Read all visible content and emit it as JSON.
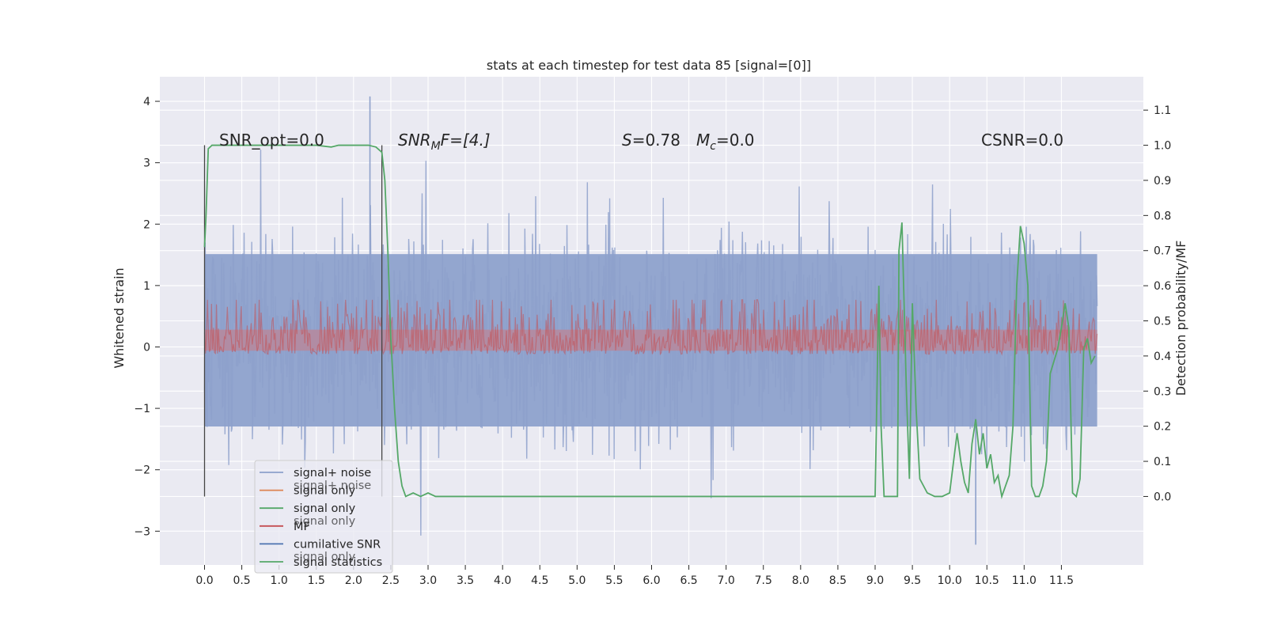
{
  "chart_data": {
    "type": "line",
    "title": "stats at each timestep for test data 85 [signal=[0]]",
    "ylabel": "Whitened strain",
    "ylabel_right": "Detection probability/MF",
    "xlim": [
      -0.6,
      12.6
    ],
    "ylim": [
      -3.55,
      4.4
    ],
    "ylim_right": [
      -0.195,
      1.195
    ],
    "x_ticks": [
      "0.0",
      "0.5",
      "1.0",
      "1.5",
      "2.0",
      "2.5",
      "3.0",
      "3.5",
      "4.0",
      "4.5",
      "5.0",
      "5.5",
      "6.0",
      "6.5",
      "7.0",
      "7.5",
      "8.0",
      "8.5",
      "9.0",
      "9.5",
      "10.0",
      "10.5",
      "11.0",
      "11.5"
    ],
    "y_ticks": [
      "−3",
      "−2",
      "−1",
      "0",
      "1",
      "2",
      "3",
      "4"
    ],
    "y_ticks_right": [
      "0.0",
      "0.1",
      "0.2",
      "0.3",
      "0.4",
      "0.5",
      "0.6",
      "0.7",
      "0.8",
      "0.9",
      "1.0",
      "1.1"
    ],
    "grid": true,
    "legend_position": "lower-left",
    "annotations": {
      "snr_opt": "SNR_opt=0.0",
      "snr_mf_pre": "SNR",
      "snr_mf_sub": "M",
      "snr_mf_post": "F=[4.]",
      "s_name": "S",
      "s_val": "=0.78",
      "mc_name": "M",
      "mc_sub": "c",
      "mc_val": "=0.0",
      "csnr": "CSNR=0.0"
    },
    "legend": [
      {
        "label": "signal+ noise",
        "color": "#8da0cb"
      },
      {
        "label": "signal only",
        "color": "#dd8452"
      },
      {
        "label": "signal only",
        "color": "#55a868"
      },
      {
        "label": "MF",
        "color": "#c44e52"
      },
      {
        "label": "cumilative SNR",
        "color": "#4c72b0"
      },
      {
        "label": "signal statistics",
        "color": "#55a868"
      }
    ],
    "legend_ghost": [
      "signal+ noise",
      "signal only",
      "signal only"
    ],
    "noise_band": {
      "x_range": [
        0.0,
        11.98
      ],
      "typical_range": [
        -1.8,
        2.1
      ],
      "peak_max": 4.08,
      "peak_min": -3.22
    },
    "mf_band": {
      "x_range": [
        0.0,
        11.98
      ],
      "range_right_axis": [
        0.405,
        0.56
      ]
    },
    "markers_x": [
      0.0,
      2.38
    ],
    "series": [
      {
        "name": "signal statistics",
        "axis": "right",
        "color": "#55a868",
        "x": [
          0.0,
          0.02,
          0.05,
          0.1,
          0.2,
          0.5,
          1.0,
          1.5,
          1.7,
          1.8,
          2.0,
          2.2,
          2.3,
          2.38,
          2.42,
          2.46,
          2.5,
          2.55,
          2.6,
          2.65,
          2.7,
          2.8,
          2.9,
          3.0,
          3.1,
          4.0,
          5.0,
          6.0,
          7.0,
          8.0,
          9.0,
          9.05,
          9.08,
          9.12,
          9.3,
          9.32,
          9.36,
          9.42,
          9.46,
          9.5,
          9.55,
          9.6,
          9.7,
          9.8,
          9.9,
          10.0,
          10.1,
          10.15,
          10.2,
          10.25,
          10.3,
          10.35,
          10.4,
          10.45,
          10.5,
          10.55,
          10.6,
          10.65,
          10.7,
          10.8,
          10.85,
          10.9,
          10.95,
          11.0,
          11.05,
          11.1,
          11.15,
          11.2,
          11.25,
          11.3,
          11.35,
          11.45,
          11.5,
          11.55,
          11.6,
          11.65,
          11.7,
          11.75,
          11.8,
          11.85,
          11.9,
          11.95
        ],
        "y": [
          0.71,
          0.8,
          0.99,
          1.0,
          1.0,
          1.0,
          1.0,
          1.0,
          0.995,
          1.0,
          1.0,
          1.0,
          0.995,
          0.98,
          0.9,
          0.7,
          0.45,
          0.25,
          0.1,
          0.03,
          0.0,
          0.01,
          0.0,
          0.01,
          0.0,
          0.0,
          0.0,
          0.0,
          0.0,
          0.0,
          0.0,
          0.6,
          0.2,
          0.0,
          0.0,
          0.7,
          0.78,
          0.3,
          0.05,
          0.55,
          0.25,
          0.05,
          0.01,
          0.0,
          0.0,
          0.01,
          0.18,
          0.1,
          0.04,
          0.01,
          0.15,
          0.22,
          0.12,
          0.18,
          0.08,
          0.12,
          0.04,
          0.06,
          0.0,
          0.06,
          0.2,
          0.6,
          0.77,
          0.72,
          0.6,
          0.03,
          0.0,
          0.0,
          0.03,
          0.1,
          0.35,
          0.42,
          0.48,
          0.55,
          0.48,
          0.01,
          0.0,
          0.05,
          0.42,
          0.45,
          0.38,
          0.4
        ]
      }
    ]
  }
}
